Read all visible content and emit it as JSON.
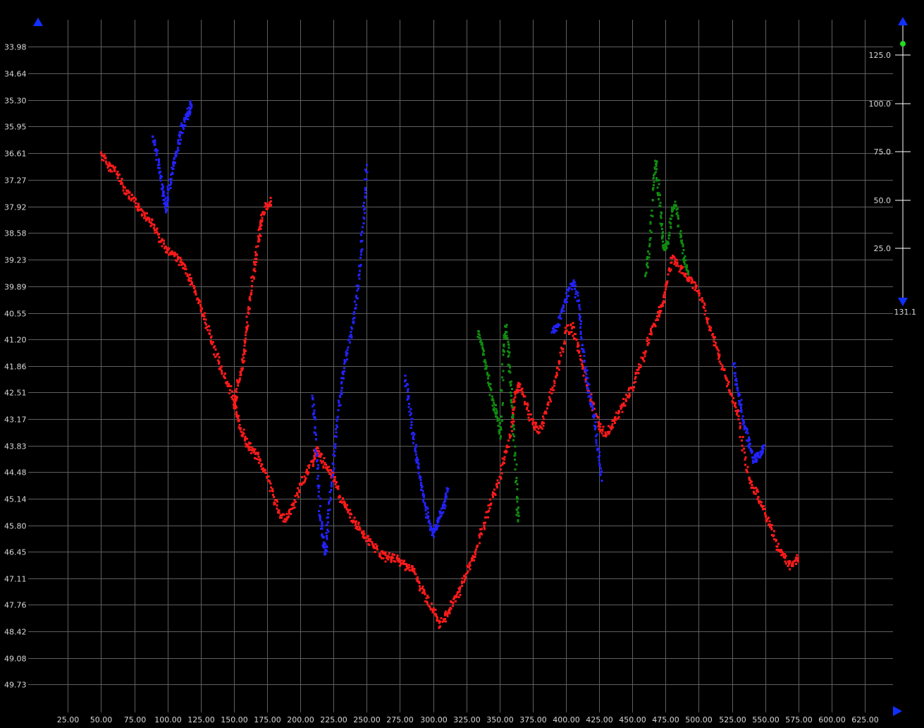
{
  "chart_data": {
    "type": "scatter",
    "title": "",
    "xlabel": "",
    "ylabel": "",
    "xlim": [
      6.25,
      646.25
    ],
    "ylim": [
      50.245,
      33.52
    ],
    "y_inverted": true,
    "grid": true,
    "background": "#000000",
    "x_ticks": [
      "25.00",
      "50.00",
      "75.00",
      "100.00",
      "125.00",
      "150.00",
      "175.00",
      "200.00",
      "225.00",
      "250.00",
      "275.00",
      "300.00",
      "325.00",
      "350.00",
      "375.00",
      "400.00",
      "425.00",
      "450.00",
      "475.00",
      "500.00",
      "525.00",
      "550.00",
      "575.00",
      "600.00",
      "625.00"
    ],
    "y_ticks": [
      "33.98",
      "34.64",
      "35.30",
      "35.95",
      "36.61",
      "37.27",
      "37.92",
      "38.58",
      "39.23",
      "39.89",
      "40.55",
      "41.20",
      "41.86",
      "42.51",
      "43.17",
      "43.83",
      "44.48",
      "45.14",
      "45.80",
      "46.45",
      "47.11",
      "47.76",
      "48.42",
      "49.08",
      "49.73"
    ],
    "series": [
      {
        "color": "#ff1a1a",
        "points": [
          [
            50,
            36.6
          ],
          [
            55,
            36.9
          ],
          [
            60,
            37.0
          ],
          [
            65,
            37.3
          ],
          [
            70,
            37.6
          ],
          [
            75,
            37.8
          ],
          [
            80,
            38.0
          ],
          [
            85,
            38.2
          ],
          [
            90,
            38.4
          ],
          [
            95,
            38.8
          ],
          [
            100,
            39.0
          ],
          [
            105,
            39.1
          ],
          [
            110,
            39.3
          ],
          [
            115,
            39.6
          ],
          [
            120,
            39.9
          ],
          [
            125,
            40.4
          ],
          [
            130,
            40.9
          ],
          [
            135,
            41.4
          ],
          [
            140,
            41.9
          ],
          [
            145,
            42.3
          ],
          [
            150,
            42.7
          ],
          [
            152,
            43.0
          ],
          [
            155,
            43.4
          ],
          [
            160,
            43.8
          ],
          [
            165,
            44.0
          ],
          [
            170,
            44.2
          ],
          [
            175,
            44.6
          ],
          [
            180,
            45.1
          ],
          [
            185,
            45.6
          ],
          [
            190,
            45.6
          ],
          [
            195,
            45.3
          ],
          [
            200,
            44.8
          ],
          [
            205,
            44.5
          ],
          [
            210,
            44.2
          ],
          [
            212,
            43.9
          ],
          [
            215,
            44.1
          ],
          [
            220,
            44.4
          ],
          [
            225,
            44.6
          ],
          [
            230,
            45.1
          ],
          [
            235,
            45.4
          ],
          [
            240,
            45.7
          ],
          [
            245,
            45.9
          ],
          [
            250,
            46.1
          ],
          [
            255,
            46.3
          ],
          [
            260,
            46.5
          ],
          [
            265,
            46.6
          ],
          [
            270,
            46.6
          ],
          [
            275,
            46.7
          ],
          [
            280,
            46.8
          ],
          [
            285,
            46.9
          ],
          [
            290,
            47.3
          ],
          [
            295,
            47.6
          ],
          [
            300,
            47.9
          ],
          [
            305,
            48.3
          ],
          [
            310,
            48.0
          ],
          [
            315,
            47.7
          ],
          [
            320,
            47.4
          ],
          [
            325,
            47.0
          ],
          [
            330,
            46.6
          ],
          [
            335,
            46.1
          ],
          [
            340,
            45.6
          ],
          [
            345,
            45.1
          ],
          [
            350,
            44.6
          ],
          [
            355,
            44.0
          ],
          [
            360,
            43.3
          ],
          [
            362,
            42.5
          ],
          [
            365,
            42.3
          ],
          [
            370,
            42.8
          ],
          [
            375,
            43.3
          ],
          [
            380,
            43.5
          ],
          [
            385,
            43.0
          ],
          [
            390,
            42.4
          ],
          [
            395,
            41.8
          ],
          [
            400,
            41.0
          ],
          [
            405,
            40.9
          ],
          [
            410,
            41.5
          ],
          [
            415,
            42.2
          ],
          [
            420,
            42.8
          ],
          [
            425,
            43.3
          ],
          [
            430,
            43.6
          ],
          [
            435,
            43.3
          ],
          [
            440,
            43.0
          ],
          [
            445,
            42.7
          ],
          [
            450,
            42.4
          ],
          [
            455,
            41.9
          ],
          [
            460,
            41.5
          ],
          [
            465,
            40.9
          ],
          [
            470,
            40.6
          ],
          [
            473,
            40.3
          ],
          [
            476,
            39.8
          ],
          [
            480,
            39.2
          ],
          [
            485,
            39.4
          ],
          [
            490,
            39.6
          ],
          [
            495,
            39.8
          ],
          [
            500,
            40.0
          ],
          [
            505,
            40.5
          ],
          [
            510,
            41.1
          ],
          [
            515,
            41.6
          ],
          [
            520,
            42.1
          ],
          [
            525,
            42.6
          ],
          [
            530,
            43.1
          ],
          [
            535,
            44.3
          ],
          [
            540,
            44.8
          ],
          [
            545,
            45.1
          ],
          [
            550,
            45.5
          ],
          [
            555,
            45.9
          ],
          [
            560,
            46.4
          ],
          [
            565,
            46.6
          ],
          [
            570,
            46.8
          ],
          [
            575,
            46.6
          ]
        ]
      },
      {
        "color": "#ff1a1a",
        "points": [
          [
            150,
            42.9
          ],
          [
            152,
            42.5
          ],
          [
            155,
            42.0
          ],
          [
            158,
            41.5
          ],
          [
            160,
            40.9
          ],
          [
            162,
            40.2
          ],
          [
            165,
            39.5
          ],
          [
            168,
            38.9
          ],
          [
            170,
            38.4
          ],
          [
            172,
            38.1
          ],
          [
            175,
            37.9
          ],
          [
            178,
            37.8
          ]
        ]
      },
      {
        "color": "#2222ff",
        "points": [
          [
            89,
            36.2
          ],
          [
            92,
            36.6
          ],
          [
            95,
            37.2
          ],
          [
            97,
            37.6
          ],
          [
            99,
            38.0
          ],
          [
            101,
            37.5
          ],
          [
            104,
            37.0
          ],
          [
            107,
            36.6
          ],
          [
            110,
            36.1
          ],
          [
            113,
            35.8
          ],
          [
            116,
            35.6
          ],
          [
            118,
            35.4
          ]
        ]
      },
      {
        "color": "#2222ff",
        "points": [
          [
            209,
            42.6
          ],
          [
            211,
            43.4
          ],
          [
            213,
            44.4
          ],
          [
            215,
            45.6
          ],
          [
            217,
            46.1
          ],
          [
            219,
            46.5
          ],
          [
            221,
            45.6
          ],
          [
            224,
            44.6
          ],
          [
            227,
            43.5
          ],
          [
            230,
            42.6
          ],
          [
            233,
            42.0
          ],
          [
            236,
            41.4
          ],
          [
            240,
            40.8
          ],
          [
            243,
            40.0
          ],
          [
            246,
            39.0
          ],
          [
            248,
            38.0
          ],
          [
            250,
            36.9
          ]
        ]
      },
      {
        "color": "#2222ff",
        "points": [
          [
            279,
            42.1
          ],
          [
            282,
            42.8
          ],
          [
            285,
            43.6
          ],
          [
            288,
            44.2
          ],
          [
            291,
            44.8
          ],
          [
            294,
            45.3
          ],
          [
            297,
            45.7
          ],
          [
            300,
            46.0
          ],
          [
            303,
            45.8
          ],
          [
            306,
            45.5
          ],
          [
            309,
            45.2
          ],
          [
            311,
            44.9
          ]
        ]
      },
      {
        "color": "#2222ff",
        "points": [
          [
            390,
            41.0
          ],
          [
            394,
            40.9
          ],
          [
            398,
            40.4
          ],
          [
            402,
            40.0
          ],
          [
            406,
            39.8
          ],
          [
            410,
            40.4
          ],
          [
            412,
            41.2
          ],
          [
            415,
            42.0
          ],
          [
            418,
            42.6
          ],
          [
            421,
            43.1
          ],
          [
            424,
            43.9
          ],
          [
            427,
            44.7
          ]
        ]
      },
      {
        "color": "#2222ff",
        "points": [
          [
            526,
            41.8
          ],
          [
            529,
            42.4
          ],
          [
            532,
            42.9
          ],
          [
            535,
            43.4
          ],
          [
            538,
            43.8
          ],
          [
            541,
            44.2
          ],
          [
            544,
            44.1
          ],
          [
            547,
            44.0
          ],
          [
            549,
            43.9
          ]
        ]
      },
      {
        "color": "#0f8a0f",
        "points": [
          [
            334,
            41.0
          ],
          [
            337,
            41.4
          ],
          [
            340,
            41.9
          ],
          [
            343,
            42.4
          ],
          [
            346,
            42.9
          ],
          [
            349,
            43.2
          ],
          [
            351,
            43.6
          ],
          [
            353,
            41.5
          ],
          [
            355,
            40.9
          ],
          [
            357,
            41.6
          ],
          [
            359,
            42.6
          ],
          [
            361,
            43.6
          ],
          [
            363,
            45.1
          ],
          [
            364,
            45.7
          ]
        ]
      },
      {
        "color": "#0f8a0f",
        "points": [
          [
            460,
            39.6
          ],
          [
            463,
            38.9
          ],
          [
            466,
            37.4
          ],
          [
            468,
            36.8
          ],
          [
            470,
            37.6
          ],
          [
            472,
            38.4
          ],
          [
            474,
            39.0
          ],
          [
            477,
            38.8
          ],
          [
            480,
            38.0
          ],
          [
            483,
            37.9
          ],
          [
            486,
            38.6
          ],
          [
            489,
            39.2
          ],
          [
            492,
            39.6
          ]
        ]
      }
    ]
  }
}
